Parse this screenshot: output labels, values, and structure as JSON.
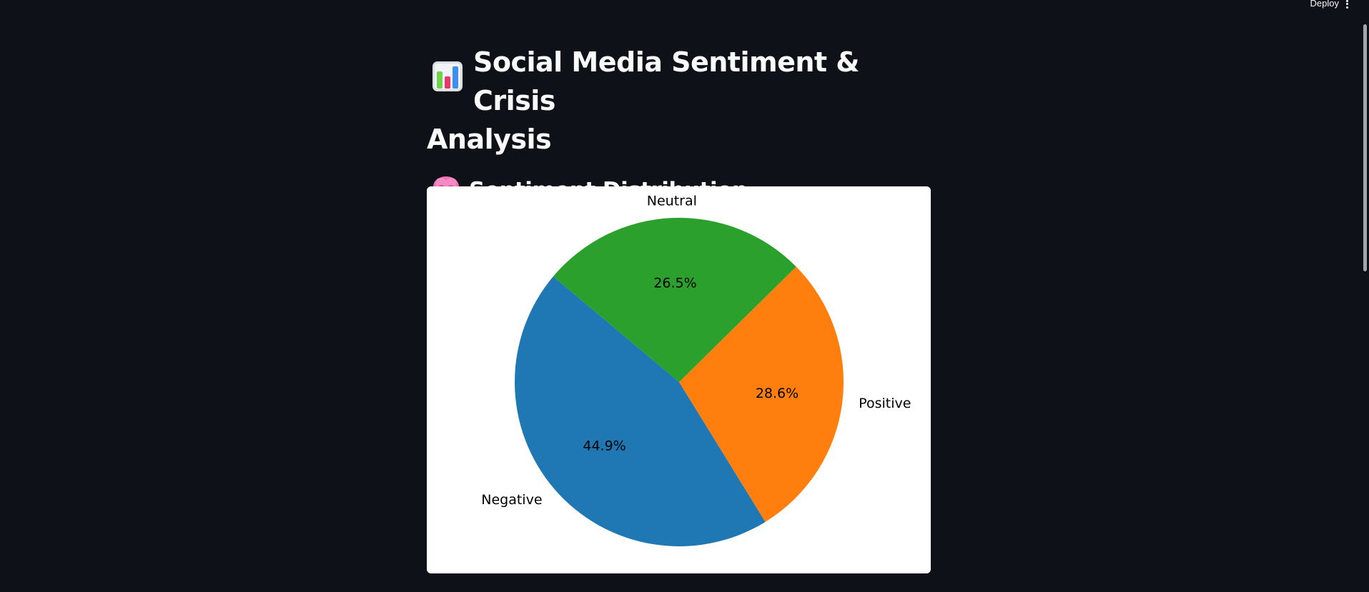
{
  "header": {
    "deploy_label": "Deploy",
    "menu_icon": "vertical-dots-icon"
  },
  "main": {
    "title_icon": "bar-chart-emoji-icon",
    "title_line_1": "Social Media Sentiment & Crisis",
    "title_line_2": "Analysis",
    "section_icon": "brain-emoji-icon",
    "section_title": "Sentiment Distribution"
  },
  "chart_data": {
    "type": "pie",
    "start_angle_deg": 140,
    "direction": "counterclockwise",
    "slices": [
      {
        "label": "Negative",
        "value": 44.9,
        "pct_label": "44.9%",
        "color": "#1f77b4"
      },
      {
        "label": "Positive",
        "value": 28.6,
        "pct_label": "28.6%",
        "color": "#ff7f0e"
      },
      {
        "label": "Neutral",
        "value": 26.5,
        "pct_label": "26.5%",
        "color": "#2ca02c"
      }
    ]
  },
  "colors": {
    "background": "#0e1117",
    "text": "#fafafa",
    "chart_background": "#ffffff"
  }
}
